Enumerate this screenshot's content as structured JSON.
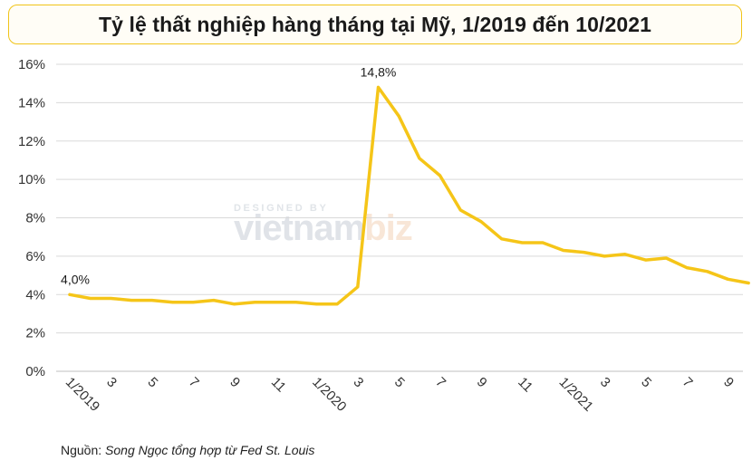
{
  "title": "Tỷ lệ thất nghiệp hàng tháng tại Mỹ, 1/2019 đến 10/2021",
  "source": {
    "prefix": "Nguồn: ",
    "body": "Song Ngọc tổng hợp từ Fed St. Louis"
  },
  "watermark": {
    "small": "DESIGNED BY",
    "part1": "vietnam",
    "part2": "biz"
  },
  "colors": {
    "line": "#f5c518",
    "title_border": "#f0c419",
    "grid": "#d9d9d9"
  },
  "chart_data": {
    "type": "line",
    "title": "Tỷ lệ thất nghiệp hàng tháng tại Mỹ, 1/2019 đến 10/2021",
    "xlabel": "",
    "ylabel": "",
    "ylim": [
      0,
      16
    ],
    "y_ticks": [
      "0%",
      "2%",
      "4%",
      "6%",
      "8%",
      "10%",
      "12%",
      "14%",
      "16%"
    ],
    "y_tick_values": [
      0,
      2,
      4,
      6,
      8,
      10,
      12,
      14,
      16
    ],
    "x_ticks": [
      {
        "index": 0,
        "label": "1/2019"
      },
      {
        "index": 2,
        "label": "3"
      },
      {
        "index": 4,
        "label": "5"
      },
      {
        "index": 6,
        "label": "7"
      },
      {
        "index": 8,
        "label": "9"
      },
      {
        "index": 10,
        "label": "11"
      },
      {
        "index": 12,
        "label": "1/2020"
      },
      {
        "index": 14,
        "label": "3"
      },
      {
        "index": 16,
        "label": "5"
      },
      {
        "index": 18,
        "label": "7"
      },
      {
        "index": 20,
        "label": "9"
      },
      {
        "index": 22,
        "label": "11"
      },
      {
        "index": 24,
        "label": "1/2021"
      },
      {
        "index": 26,
        "label": "3"
      },
      {
        "index": 28,
        "label": "5"
      },
      {
        "index": 30,
        "label": "7"
      },
      {
        "index": 32,
        "label": "9"
      }
    ],
    "series": [
      {
        "values": [
          4.0,
          3.8,
          3.8,
          3.7,
          3.7,
          3.6,
          3.6,
          3.7,
          3.5,
          3.6,
          3.6,
          3.6,
          3.5,
          3.5,
          4.4,
          14.8,
          13.3,
          11.1,
          10.2,
          8.4,
          7.8,
          6.9,
          6.7,
          6.7,
          6.3,
          6.2,
          6.0,
          6.1,
          5.8,
          5.9,
          5.4,
          5.2,
          4.8,
          4.6
        ]
      }
    ],
    "annotations": [
      {
        "index": 0,
        "label": "4,0%"
      },
      {
        "index": 15,
        "label": "14,8%"
      }
    ],
    "grid": true,
    "legend": "none"
  }
}
